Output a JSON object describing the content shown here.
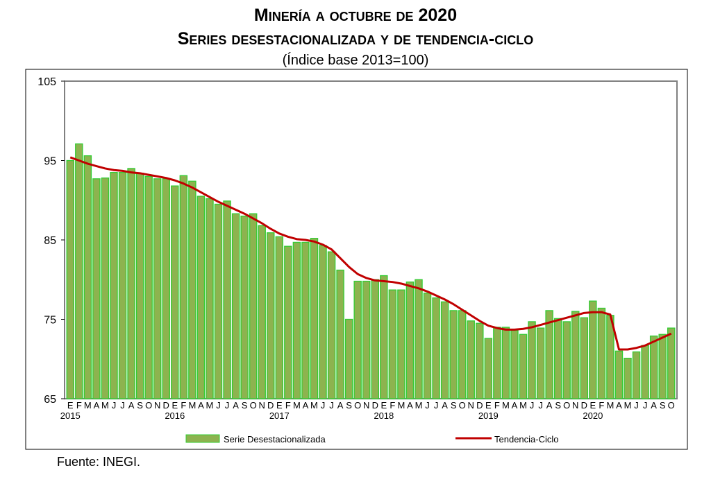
{
  "title": "Minería a octubre de 2020",
  "subtitle": "Series desestacionalizada y de tendencia-ciclo",
  "unit_note": "(Índice base 2013=100)",
  "source": "Fuente: INEGI.",
  "colors": {
    "bar": "#8db34f",
    "bar_border": "#33cc33",
    "trend": "#c00000"
  },
  "chart_data": {
    "type": "bar",
    "title": "Minería a octubre de 2020",
    "ylim": [
      65,
      105
    ],
    "yticks": [
      "65",
      "75",
      "85",
      "95",
      "105"
    ],
    "month_labels": [
      "E",
      "F",
      "M",
      "A",
      "M",
      "J",
      "J",
      "A",
      "S",
      "O",
      "N",
      "D"
    ],
    "years": [
      "2015",
      "2016",
      "2017",
      "2018",
      "2019",
      "2020"
    ],
    "legend": {
      "placement": "bottom",
      "entries": [
        "Serie Desestacionalizada",
        "Tendencia-Ciclo"
      ]
    },
    "series": [
      {
        "name": "Serie Desestacionalizada",
        "type": "bar",
        "values": [
          95.0,
          97.1,
          95.6,
          92.7,
          92.8,
          93.5,
          93.5,
          94.0,
          93.4,
          93.0,
          92.7,
          92.7,
          91.8,
          93.1,
          92.4,
          90.5,
          90.2,
          89.5,
          89.9,
          88.3,
          88.0,
          88.3,
          86.8,
          85.9,
          85.4,
          84.2,
          84.7,
          84.7,
          85.2,
          84.3,
          83.5,
          81.2,
          75.0,
          79.8,
          79.8,
          80.0,
          80.5,
          78.7,
          78.7,
          79.7,
          80.0,
          78.3,
          77.7,
          77.2,
          76.1,
          76.1,
          74.8,
          74.5,
          72.6,
          74.0,
          74.0,
          73.6,
          73.1,
          74.7,
          73.9,
          76.1,
          75.1,
          74.7,
          76.0,
          75.2,
          77.3,
          76.4,
          75.5,
          71.0,
          70.1,
          70.9,
          71.7,
          72.9,
          73.1,
          73.9
        ]
      },
      {
        "name": "Tendencia-Ciclo",
        "type": "line",
        "values": [
          95.4,
          95.0,
          94.6,
          94.3,
          94.0,
          93.8,
          93.7,
          93.5,
          93.4,
          93.2,
          93.0,
          92.8,
          92.5,
          92.1,
          91.6,
          91.0,
          90.4,
          89.8,
          89.3,
          88.8,
          88.3,
          87.7,
          87.1,
          86.4,
          85.8,
          85.4,
          85.1,
          85.0,
          84.8,
          84.4,
          83.8,
          82.7,
          81.6,
          80.7,
          80.2,
          79.9,
          79.8,
          79.7,
          79.5,
          79.2,
          78.9,
          78.5,
          78.0,
          77.5,
          76.9,
          76.2,
          75.5,
          74.8,
          74.2,
          73.9,
          73.7,
          73.7,
          73.8,
          74.0,
          74.3,
          74.6,
          74.9,
          75.2,
          75.5,
          75.8,
          75.9,
          75.9,
          75.6,
          71.2,
          71.2,
          71.4,
          71.7,
          72.2,
          72.7,
          73.2
        ]
      }
    ]
  }
}
